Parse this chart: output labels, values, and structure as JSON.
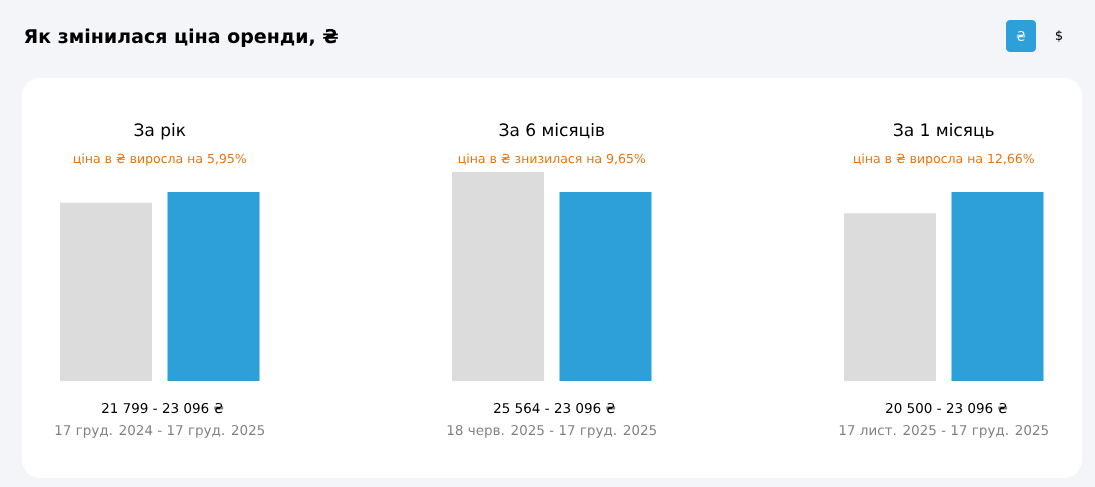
{
  "chart_data": [
    {
      "type": "bar",
      "title": "За рік",
      "subtitle": "ціна в ₴ виросла на 5,95%",
      "categories": [
        null,
        null
      ],
      "values": [
        21799,
        23096
      ],
      "value_labels": [
        "21 799 -",
        "23 096 ₴"
      ],
      "colors": [
        "#dcdcdc",
        "#2d9fd9"
      ],
      "annotations": [
        "Як змінилася ціна оренди, ₴",
        "₴",
        "$",
        "17 груд. 2024 - 17 груд. 2025"
      ]
    },
    {
      "type": "bar",
      "title": "За 6 місяців",
      "subtitle": "ціна в ₴ знизилася на 9,65%",
      "categories": [
        null,
        null
      ],
      "values": [
        25564,
        23096
      ],
      "value_labels": [
        "25 564 -",
        "23 096 ₴"
      ],
      "colors": [
        "#dcdcdc",
        "#2d9fd9"
      ],
      "annotations": [
        "18 черв. 2025 - 17 груд. 2025"
      ]
    },
    {
      "type": "bar",
      "title": "За 1 місяць",
      "subtitle": "ціна в ₴ виросла на 12,66%",
      "categories": [
        null,
        null
      ],
      "values": [
        20500,
        23096
      ],
      "value_labels": [
        "20 500 -",
        "23 096 ₴"
      ],
      "colors": [
        "#dcdcdc",
        "#2d9fd9"
      ],
      "annotations": [
        "17 лист. 2025 - 17 груд. 2025"
      ]
    }
  ]
}
